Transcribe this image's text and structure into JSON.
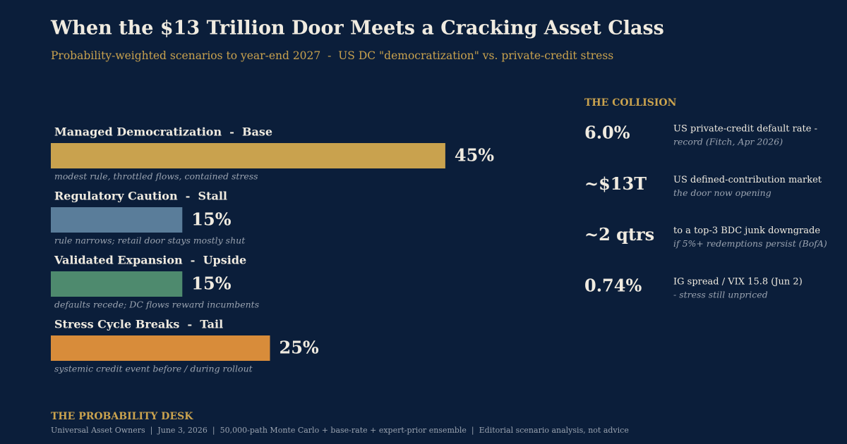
{
  "chart_data": {
    "type": "bar",
    "orientation": "horizontal",
    "title": "When the $13 Trillion Door Meets a Cracking Asset Class",
    "subtitle": "Probability-weighted scenarios to year-end 2027  -  US DC \"democratization\" vs. private-credit stress",
    "categories": [
      "Managed Democratization  -  Base",
      "Regulatory Caution  -  Stall",
      "Validated Expansion  -  Upside",
      "Stress Cycle Breaks  -  Tail"
    ],
    "descriptions": [
      "modest rule, throttled flows, contained stress",
      "rule narrows; retail door stays mostly shut",
      "defaults recede; DC flows reward incumbents",
      "systemic credit event before / during rollout"
    ],
    "values": [
      45,
      15,
      15,
      25
    ],
    "value_labels": [
      "45%",
      "15%",
      "15%",
      "25%"
    ],
    "colors": [
      "#c9a24e",
      "#5a7d9a",
      "#4e8a6e",
      "#d88c3a"
    ]
  },
  "collision": {
    "heading": "THE COLLISION",
    "items": [
      {
        "value": "6.0%",
        "label": "US private-credit default rate -",
        "note": "record (Fitch, Apr 2026)"
      },
      {
        "value": "~$13T",
        "label": "US defined-contribution market",
        "note": "the door now opening"
      },
      {
        "value": "~2 qtrs",
        "label": "to a top-3 BDC junk downgrade",
        "note": "if 5%+ redemptions persist (BofA)"
      },
      {
        "value": "0.74%",
        "label": "IG spread / VIX 15.8 (Jun 2)",
        "note": "- stress still unpriced"
      }
    ]
  },
  "footer": {
    "brand": "THE PROBABILITY DESK",
    "text": "Universal Asset Owners  |  June 3, 2026  |  50,000-path Monte Carlo + base-rate + expert-prior ensemble  |  Editorial scenario analysis, not advice"
  }
}
